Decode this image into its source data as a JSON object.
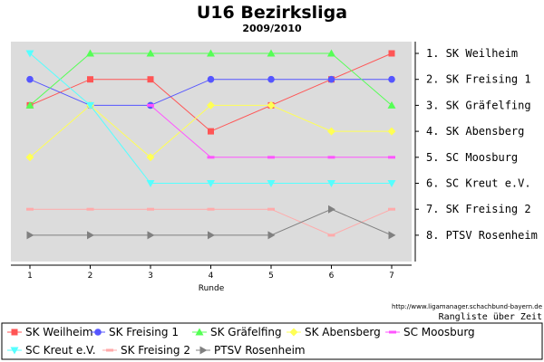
{
  "chart_data": {
    "type": "line",
    "title": "U16 Bezirksliga",
    "subtitle": "2009/2010",
    "xlabel": "Runde",
    "x": [
      1,
      2,
      3,
      4,
      5,
      6,
      7
    ],
    "ylim": [
      1,
      8
    ],
    "y_inverted": true,
    "grid": false,
    "rank_labels": [
      "1. SK Weilheim",
      "2. SK Freising 1",
      "3. SK Gräfelfing",
      "4. SK Abensberg",
      "5. SC Moosburg",
      "6. SC Kreut e.V.",
      "7. SK Freising 2",
      "8. PTSV Rosenheim"
    ],
    "series": [
      {
        "name": "SK Weilheim",
        "values": [
          3,
          2,
          2,
          4,
          3,
          2,
          1
        ],
        "color": "#ff5555",
        "marker": "square"
      },
      {
        "name": "SK Freising 1",
        "values": [
          2,
          3,
          3,
          2,
          2,
          2,
          2
        ],
        "color": "#5555ff",
        "marker": "circle"
      },
      {
        "name": "SK Gräfelfing",
        "values": [
          3,
          1,
          1,
          1,
          1,
          1,
          3
        ],
        "color": "#55ff55",
        "marker": "triangle-up"
      },
      {
        "name": "SK Abensberg",
        "values": [
          5,
          3,
          5,
          3,
          3,
          4,
          4
        ],
        "color": "#ffff55",
        "marker": "diamond"
      },
      {
        "name": "SC Moosburg",
        "values": [
          null,
          null,
          3,
          5,
          5,
          5,
          5
        ],
        "color": "#ff55ff",
        "marker": "dash"
      },
      {
        "name": "SC Kreut e.V.",
        "values": [
          1,
          3,
          6,
          6,
          6,
          6,
          6
        ],
        "color": "#55ffff",
        "marker": "triangle-down"
      },
      {
        "name": "SK Freising 2",
        "values": [
          7,
          7,
          7,
          7,
          7,
          8,
          7
        ],
        "color": "#ffaaaa",
        "marker": "dash"
      },
      {
        "name": "PTSV Rosenheim",
        "values": [
          8,
          8,
          8,
          8,
          8,
          7,
          8
        ],
        "color": "#808080",
        "marker": "triangle-right"
      }
    ],
    "legend_position": "bottom",
    "source_text": "http://www.ligamanager.schachbund-bayern.de",
    "footnote": "Rangliste über Zeit"
  }
}
